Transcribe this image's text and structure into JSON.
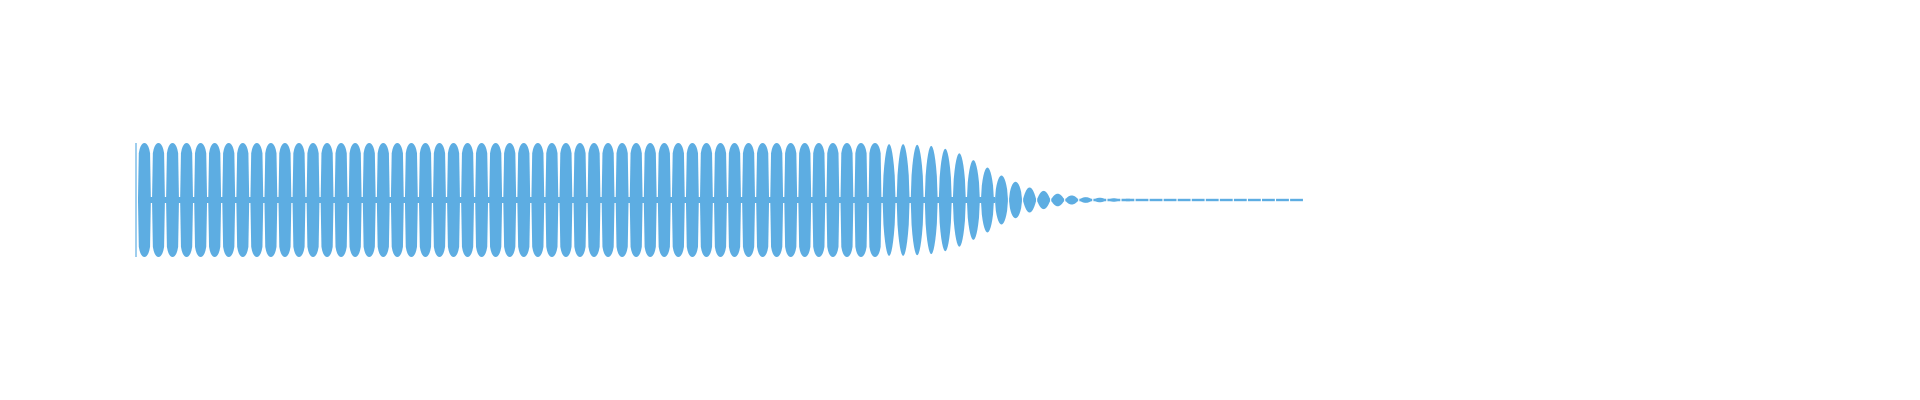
{
  "chart_data": {
    "type": "waveform",
    "title": "",
    "xlabel": "",
    "ylabel": "",
    "grid": false,
    "legend": "none",
    "color": "#5dade2",
    "ylim": [
      -1,
      1
    ],
    "pulse_amplitudes": [
      1,
      1,
      1,
      1,
      1,
      1,
      1,
      1,
      1,
      1,
      1,
      1,
      1,
      1,
      1,
      1,
      1,
      1,
      1,
      1,
      1,
      1,
      1,
      1,
      1,
      1,
      1,
      1,
      1,
      1,
      1,
      1,
      1,
      1,
      1,
      1,
      1,
      1,
      1,
      1,
      1,
      1,
      1,
      1,
      1,
      1,
      1,
      1,
      1,
      1,
      1,
      1,
      1,
      0.98,
      0.98,
      0.97,
      0.95,
      0.9,
      0.82,
      0.7,
      0.57,
      0.43,
      0.32,
      0.22,
      0.16,
      0.11,
      0.08,
      0.05,
      0.04,
      0.03,
      0.025,
      0.02,
      0.02,
      0.02,
      0.02,
      0.02,
      0.02,
      0.015,
      0.015,
      0.015,
      0.012,
      0.01,
      0.01
    ]
  }
}
